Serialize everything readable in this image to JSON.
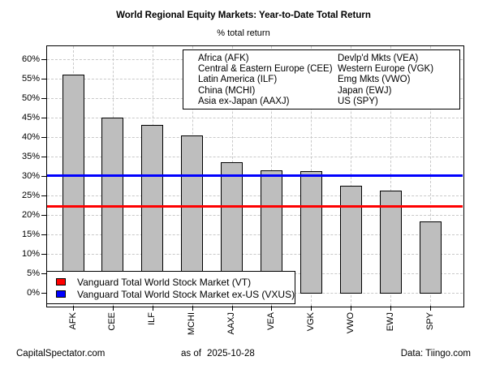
{
  "title": "World Regional Equity Markets: Year-to-Date Total Return",
  "subtitle": "% total return",
  "chart_data": {
    "type": "bar",
    "categories": [
      "AFK",
      "CEE",
      "ILF",
      "MCHI",
      "AAXJ",
      "VEA",
      "VGK",
      "VWO",
      "EWJ",
      "SPY"
    ],
    "values": [
      56.1,
      45.0,
      43.1,
      40.4,
      33.5,
      31.5,
      31.2,
      27.5,
      26.2,
      18.3
    ],
    "title": "World Regional Equity Markets: Year-to-Date Total Return",
    "subtitle": "% total return",
    "xlabel": "",
    "ylabel": "",
    "ylim": [
      0,
      60
    ],
    "ytick_step": 5,
    "ytick_suffix": "%",
    "grid": true,
    "bar_color": "#bebebe",
    "bar_border_color": "#000000",
    "reference_lines": [
      {
        "label": "Vanguard Total World Stock Market (VT)",
        "value": 22.2,
        "color": "#ff0000"
      },
      {
        "label": "Vanguard Total World Stock Market ex-US (VXUS)",
        "value": 30.1,
        "color": "#0000ff"
      }
    ],
    "legend_position": "top-right-inside"
  },
  "ticker_legend": {
    "col1": [
      "Africa (AFK)",
      "Central & Eastern Europe (CEE)",
      "Latin America (ILF)",
      "China (MCHI)",
      "Asia ex-Japan (AAXJ)"
    ],
    "col2": [
      "Devlp'd Mkts (VEA)",
      "Western Europe (VGK)",
      "Emg Mkts (VWO)",
      "Japan (EWJ)",
      "US (SPY)"
    ]
  },
  "footer": {
    "left": "CapitalSpectator.com",
    "center_prefix": "as of",
    "center_date": "2025-10-28",
    "right": "Data: Tiingo.com"
  }
}
